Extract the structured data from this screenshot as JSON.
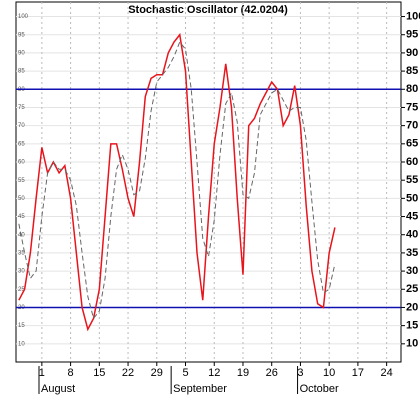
{
  "chart_data": {
    "type": "line",
    "title": "Stochastic Oscillator (42.0204)",
    "categories": [
      null,
      null,
      null,
      null,
      "1",
      null,
      null,
      null,
      null,
      "8",
      null,
      null,
      null,
      null,
      "15",
      null,
      null,
      null,
      null,
      "22",
      null,
      null,
      null,
      null,
      "29",
      null,
      null,
      null,
      null,
      "5",
      null,
      null,
      null,
      null,
      "12",
      null,
      null,
      null,
      null,
      "19",
      null,
      null,
      null,
      null,
      "26",
      null,
      null,
      null,
      null,
      "3",
      null,
      null,
      null,
      null,
      "10",
      null,
      null,
      null,
      null,
      "17",
      null,
      null,
      null,
      null,
      "24",
      null,
      null
    ],
    "month_labels": [
      null,
      null,
      null,
      null,
      "August",
      null,
      null,
      null,
      null,
      null,
      null,
      null,
      null,
      null,
      null,
      null,
      null,
      null,
      null,
      null,
      null,
      null,
      null,
      null,
      null,
      null,
      null,
      "September",
      null,
      null,
      null,
      null,
      null,
      null,
      null,
      null,
      null,
      null,
      null,
      null,
      null,
      null,
      null,
      null,
      null,
      null,
      null,
      null,
      null,
      "October",
      null,
      null,
      null,
      null,
      null,
      null,
      null,
      null,
      null,
      null,
      null,
      null,
      null,
      null,
      null,
      null,
      null
    ],
    "series": [
      {
        "color": "#e8141c",
        "dash": false,
        "values": [
          22,
          25,
          35,
          50,
          64,
          57,
          60,
          57,
          59,
          50,
          35,
          20,
          14,
          17,
          25,
          45,
          65,
          65,
          58,
          50,
          45,
          60,
          78,
          83,
          84,
          84,
          90,
          93,
          95,
          85,
          60,
          35,
          22,
          45,
          65,
          75,
          87,
          75,
          50,
          29,
          70,
          72,
          76,
          79,
          82,
          80,
          70,
          73,
          81,
          70,
          48,
          30,
          21,
          20,
          35,
          42,
          null,
          null,
          null,
          null,
          null,
          null,
          null,
          null,
          null,
          null,
          null
        ]
      },
      {
        "color": "#666666",
        "dash": true,
        "values": [
          43,
          35,
          28,
          30,
          45,
          57,
          60,
          58,
          58,
          55,
          48,
          35,
          23,
          17,
          19,
          28,
          45,
          58,
          62,
          58,
          51,
          52,
          61,
          74,
          82,
          84,
          86,
          89,
          93,
          91,
          80,
          60,
          39,
          34,
          44,
          62,
          76,
          79,
          71,
          51,
          50,
          57,
          73,
          76,
          79,
          80,
          77,
          74,
          75,
          75,
          66,
          49,
          33,
          24,
          25,
          32,
          null,
          null,
          null,
          null,
          null,
          null,
          null,
          null,
          null,
          null,
          null
        ]
      }
    ],
    "reference_lines": [
      80,
      20
    ],
    "reference_color": "#1010b0",
    "ylim": [
      5,
      104
    ],
    "yticks": [
      10,
      15,
      20,
      25,
      30,
      35,
      40,
      45,
      50,
      55,
      60,
      65,
      70,
      75,
      80,
      85,
      90,
      95,
      100
    ],
    "grid": true
  }
}
